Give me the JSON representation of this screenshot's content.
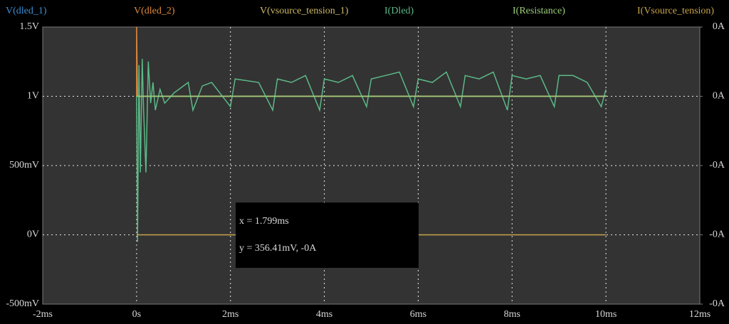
{
  "chart_data": {
    "type": "line",
    "xlim": [
      -2,
      12
    ],
    "xticks": [
      {
        "value": -2,
        "label": "-2ms"
      },
      {
        "value": 0,
        "label": "0s"
      },
      {
        "value": 2,
        "label": "2ms"
      },
      {
        "value": 4,
        "label": "4ms"
      },
      {
        "value": 6,
        "label": "6ms"
      },
      {
        "value": 8,
        "label": "8ms"
      },
      {
        "value": 10,
        "label": "10ms"
      },
      {
        "value": 12,
        "label": "12ms"
      }
    ],
    "ylim": [
      -0.5,
      1.5
    ],
    "yticks": [
      {
        "value": -0.5,
        "label": "-500mV"
      },
      {
        "value": 0,
        "label": "0V"
      },
      {
        "value": 0.5,
        "label": "500mV"
      },
      {
        "value": 1,
        "label": "1V"
      },
      {
        "value": 1.5,
        "label": "1.5V"
      }
    ],
    "y2lim": [
      -0.0005,
      0.0003
    ],
    "y2ticks": [
      {
        "value": -0.0005,
        "label": "-0A"
      },
      {
        "value": -0.0003,
        "label": "-0A"
      },
      {
        "value": -0.0001,
        "label": "-0A"
      },
      {
        "value": 0.0001,
        "label": "0A"
      },
      {
        "value": 0.0003,
        "label": "0A"
      }
    ],
    "grid": true,
    "series": [
      {
        "name": "V(dled_1)",
        "color": "#3a8fd6",
        "x": [
          0,
          10
        ],
        "values": [
          1,
          1
        ]
      },
      {
        "name": "V(dled_2)",
        "color": "#e0883a",
        "x": [
          0,
          0,
          0.02,
          10
        ],
        "values": [
          1,
          1.5,
          1,
          1
        ]
      },
      {
        "name": "V(vsource_tension_1)",
        "color": "#cdb866",
        "x": [
          0,
          0.1,
          10
        ],
        "values": [
          1,
          1,
          1
        ]
      },
      {
        "name": "I(Dled)",
        "color": "#5cb887",
        "axis": "y2",
        "x": [
          0,
          0.02,
          0.05,
          0.08,
          0.12,
          0.15,
          0.2,
          0.25,
          0.3,
          0.35,
          0.4,
          0.5,
          0.6,
          0.8,
          1.1,
          1.2,
          1.4,
          1.6,
          2.0,
          2.1,
          2.6,
          2.9,
          3.0,
          3.3,
          3.6,
          3.9,
          4.0,
          4.3,
          4.6,
          4.9,
          5.0,
          5.3,
          5.6,
          5.9,
          6.0,
          6.3,
          6.6,
          6.9,
          7.0,
          7.3,
          7.6,
          7.9,
          8.0,
          8.3,
          8.6,
          8.9,
          9.0,
          9.3,
          9.6,
          9.9,
          10.0
        ],
        "values": [
          0.0001,
          -0.00032,
          0.00019,
          -0.00012,
          0.000208,
          6e-05,
          -0.00012,
          0.0002,
          8e-05,
          0.00014,
          6e-05,
          0.00012,
          8e-05,
          0.00011,
          0.00014,
          6e-05,
          0.00013,
          0.00014,
          7e-05,
          0.00015,
          0.00014,
          6e-05,
          0.00015,
          0.00014,
          0.00016,
          6e-05,
          0.00015,
          0.00014,
          0.00016,
          7e-05,
          0.00015,
          0.00016,
          0.00017,
          7e-05,
          0.00015,
          0.00014,
          0.00017,
          7e-05,
          0.00016,
          0.00015,
          0.00017,
          6e-05,
          0.00016,
          0.00015,
          0.00016,
          7e-05,
          0.00016,
          0.00016,
          0.00014,
          7e-05,
          0.00012
        ]
      },
      {
        "name": "I(Resistance)",
        "color": "#9acd7a",
        "axis": "y2",
        "x": [
          0,
          10
        ],
        "values": [
          0.0001,
          0.0001
        ]
      },
      {
        "name": "I(Vsource_tension)",
        "color": "#c9a44a",
        "axis": "y2",
        "x": [
          0,
          10
        ],
        "values": [
          -0.0003,
          -0.0003
        ]
      }
    ],
    "annotations": [
      "x = 1.799ms",
      "y = 356.41mV, -0A"
    ]
  }
}
